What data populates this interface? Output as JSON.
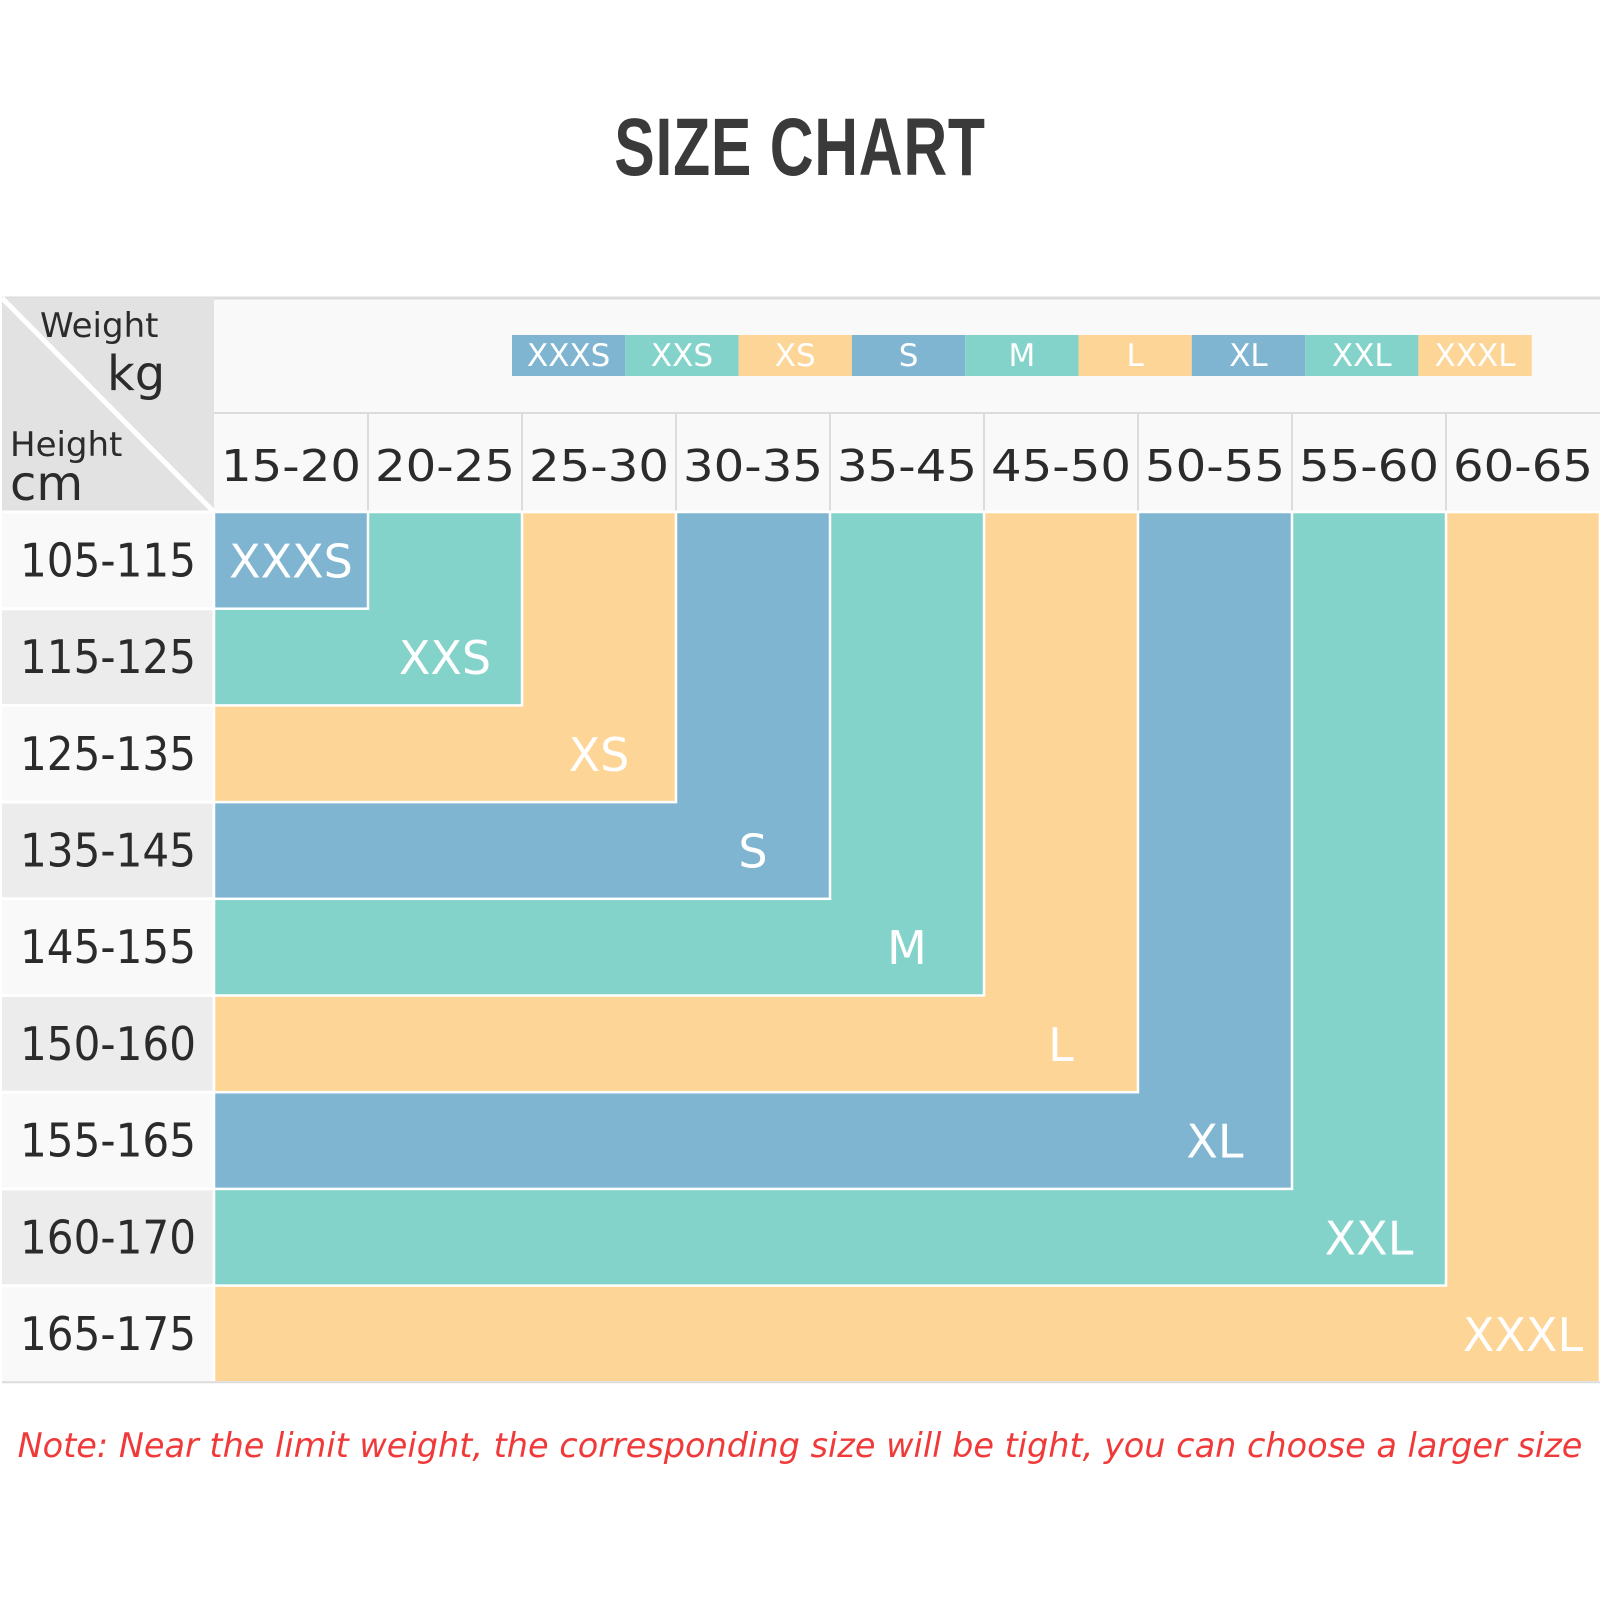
{
  "title": "SIZE CHART",
  "note": "Note: Near the limit weight, the corresponding size will be tight, you can choose a larger size",
  "chart_data": {
    "type": "table",
    "corner": {
      "weight_label": "Weight",
      "weight_unit": "kg",
      "height_label": "Height",
      "height_unit": "cm"
    },
    "legend": [
      "XXXS",
      "XXS",
      "XS",
      "S",
      "M",
      "L",
      "XL",
      "XXL",
      "XXXL"
    ],
    "weight_ranges_kg": [
      "15-20",
      "20-25",
      "25-30",
      "30-35",
      "35-45",
      "45-50",
      "50-55",
      "55-60",
      "60-65"
    ],
    "height_ranges_cm": [
      "105-115",
      "115-125",
      "125-135",
      "135-145",
      "145-155",
      "150-160",
      "155-165",
      "160-170",
      "165-175"
    ],
    "sizes": [
      {
        "size": "XXXS",
        "max_weight_kg": "15-20",
        "max_height_cm": "105-115"
      },
      {
        "size": "XXS",
        "max_weight_kg": "20-25",
        "max_height_cm": "115-125"
      },
      {
        "size": "XS",
        "max_weight_kg": "25-30",
        "max_height_cm": "125-135"
      },
      {
        "size": "S",
        "max_weight_kg": "30-35",
        "max_height_cm": "135-145"
      },
      {
        "size": "M",
        "max_weight_kg": "35-45",
        "max_height_cm": "145-155"
      },
      {
        "size": "L",
        "max_weight_kg": "45-50",
        "max_height_cm": "150-160"
      },
      {
        "size": "XL",
        "max_weight_kg": "50-55",
        "max_height_cm": "155-165"
      },
      {
        "size": "XXL",
        "max_weight_kg": "55-60",
        "max_height_cm": "160-170"
      },
      {
        "size": "XXXL",
        "max_weight_kg": "60-65",
        "max_height_cm": "165-175"
      }
    ],
    "colors": {
      "blue": "#7fb5d1",
      "teal": "#84d3cb",
      "peach": "#fdd597",
      "header_white": "#f9f9f9",
      "row_label_light": "#f9f9f9",
      "row_label_dark": "#ececec",
      "corner": "#e2e2e2",
      "grid_line": "#dcdcdc",
      "text_dark": "#2b2b2b",
      "size_label": "#ffffff",
      "note_red": "#f03a3a"
    }
  }
}
